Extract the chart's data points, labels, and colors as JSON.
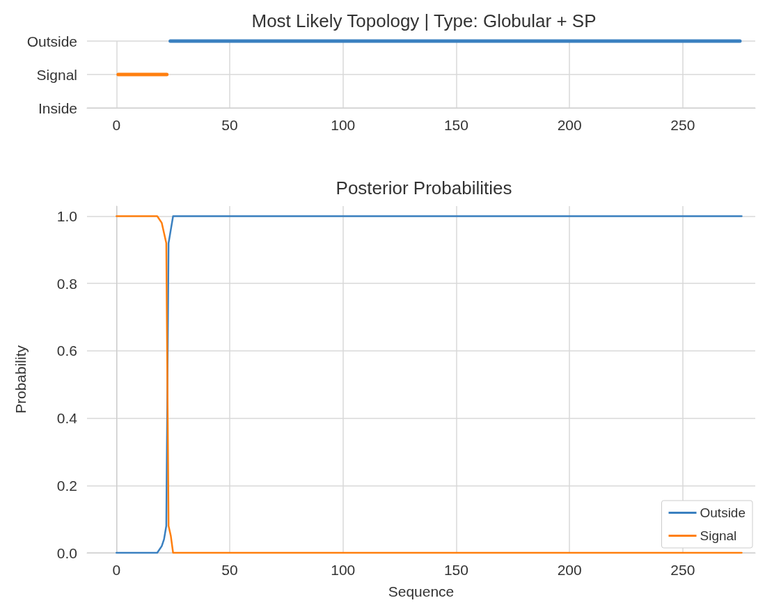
{
  "chart_data": [
    {
      "type": "bar",
      "orientation": "horizontal",
      "title": "Most Likely Topology | Type: Globular + SP",
      "xlim": [
        -13,
        282
      ],
      "xticks": [
        0,
        50,
        100,
        150,
        200,
        250
      ],
      "grid": true,
      "legend": false,
      "categories": [
        "Outside",
        "Signal",
        "Inside"
      ],
      "base": [
        23,
        0,
        null
      ],
      "values": [
        253,
        23,
        null
      ],
      "colors": [
        "#3a80c0",
        "#ff7f0e",
        null
      ]
    },
    {
      "type": "line",
      "title": "Posterior Probabilities",
      "xlabel": "Sequence",
      "ylabel": "Probability",
      "xlim": [
        -13,
        282
      ],
      "xticks": [
        0,
        50,
        100,
        150,
        200,
        250
      ],
      "ylim": [
        0,
        1.03
      ],
      "yticks": [
        {
          "value": 0,
          "label": "0.0"
        },
        {
          "value": 0.2,
          "label": "0.2"
        },
        {
          "value": 0.4,
          "label": "0.4"
        },
        {
          "value": 0.6,
          "label": "0.6"
        },
        {
          "value": 0.8,
          "label": "0.8"
        },
        {
          "value": 1,
          "label": "1.0"
        }
      ],
      "grid": true,
      "legend": "bottom right",
      "series": [
        {
          "name": "Outside",
          "color": "#3a80c0",
          "x": [
            0,
            18,
            20,
            21,
            22,
            23,
            24,
            25,
            276
          ],
          "values": [
            0,
            0,
            0.02,
            0.04,
            0.08,
            0.92,
            0.96,
            1,
            1
          ]
        },
        {
          "name": "Signal",
          "color": "#ff7f0e",
          "x": [
            0,
            18,
            20,
            21,
            22,
            23,
            24,
            25,
            276
          ],
          "values": [
            1,
            1,
            0.98,
            0.95,
            0.92,
            0.08,
            0.05,
            0,
            0
          ]
        }
      ]
    }
  ]
}
